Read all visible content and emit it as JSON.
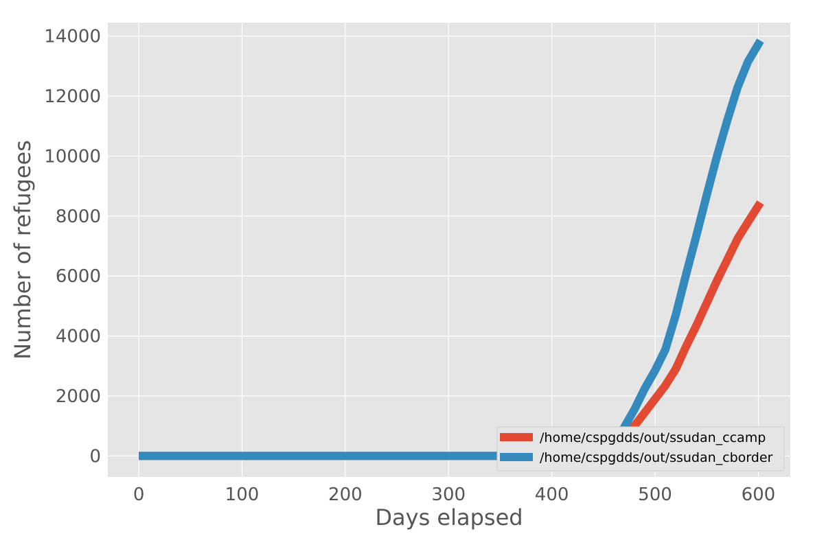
{
  "chart_data": {
    "type": "line",
    "title": "",
    "xlabel": "Days elapsed",
    "ylabel": "Number of refugees",
    "xlim": [
      -30,
      631
    ],
    "ylim": [
      -700,
      14450
    ],
    "xticks": [
      0,
      100,
      200,
      300,
      400,
      500,
      600
    ],
    "yticks": [
      0,
      2000,
      4000,
      6000,
      8000,
      10000,
      12000,
      14000
    ],
    "grid": true,
    "legend_position": "bottom-right",
    "series": [
      {
        "name": "/home/cspgdds/out/ssudan_ccamp",
        "color": "#E24A33",
        "x": [
          0,
          380,
          450,
          460,
          470,
          480,
          490,
          500,
          510,
          520,
          530,
          540,
          550,
          560,
          570,
          580,
          590,
          602
        ],
        "y": [
          0,
          0,
          60,
          250,
          600,
          1000,
          1450,
          1900,
          2350,
          2900,
          3650,
          4350,
          5100,
          5850,
          6550,
          7250,
          7800,
          8450
        ]
      },
      {
        "name": "/home/cspgdds/out/ssudan_cborder",
        "color": "#348ABD",
        "x": [
          0,
          380,
          450,
          460,
          470,
          480,
          490,
          500,
          510,
          520,
          530,
          540,
          550,
          560,
          570,
          580,
          590,
          602
        ],
        "y": [
          0,
          0,
          80,
          400,
          950,
          1550,
          2250,
          2850,
          3550,
          4700,
          6050,
          7350,
          8700,
          10000,
          11200,
          12300,
          13150,
          13850
        ]
      }
    ]
  }
}
